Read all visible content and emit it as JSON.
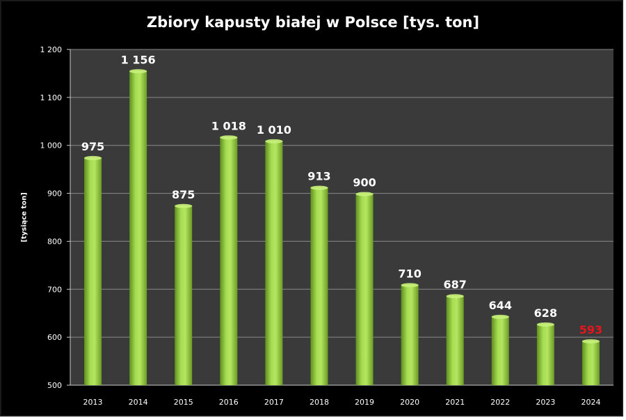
{
  "chart_data": {
    "type": "bar",
    "title": "Zbiory kapusty białej w Polsce [tys. ton]",
    "ylabel": "[tysiące ton]",
    "xlabel": "",
    "ylim": [
      500,
      1200
    ],
    "yticks": [
      "500",
      "600",
      "700",
      "800",
      "900",
      "1 000",
      "1 100",
      "1 200"
    ],
    "grid": true,
    "categories": [
      "2013",
      "2014",
      "2015",
      "2016",
      "2017",
      "2018",
      "2019",
      "2020",
      "2021",
      "2022",
      "2023",
      "2024"
    ],
    "values": [
      975,
      1156,
      875,
      1018,
      1010,
      913,
      900,
      710,
      687,
      644,
      628,
      593
    ],
    "data_labels": [
      "975",
      "1 156",
      "875",
      "1 018",
      "1 010",
      "913",
      "900",
      "710",
      "687",
      "644",
      "628",
      "593"
    ],
    "colors": {
      "background": "#000000",
      "plot_area": "#3a3a3a",
      "bar": "#8cc63f",
      "label": "#ffffff",
      "highlight_label": "#e8141c",
      "gridline": "#8a8a8a"
    },
    "highlight_index": 11
  }
}
